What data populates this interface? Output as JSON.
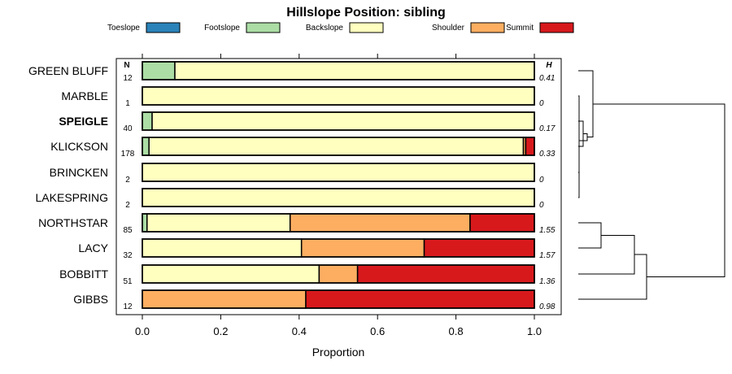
{
  "chart_data": {
    "type": "bar",
    "stacked": true,
    "orientation": "horizontal",
    "title": "Hillslope Position: sibling",
    "xlabel": "Proportion",
    "xlim": [
      0,
      1
    ],
    "xticks": [
      0,
      0.2,
      0.4,
      0.6,
      0.8,
      1
    ],
    "xtick_labels": [
      "0.0",
      "0.2",
      "0.4",
      "0.6",
      "0.8",
      "1.0"
    ],
    "legend_position": "top",
    "n_header": "N",
    "h_header": "H",
    "highlight_category": "SPEIGLE",
    "categories": [
      "GREEN BLUFF",
      "MARBLE",
      "SPEIGLE",
      "KLICKSON",
      "BRINCKEN",
      "LAKESPRING",
      "NORTHSTAR",
      "LACY",
      "BOBBITT",
      "GIBBS"
    ],
    "n": [
      "12",
      "1",
      "40",
      "178",
      "2",
      "2",
      "85",
      "32",
      "51",
      "12"
    ],
    "h": [
      "0.41",
      "0",
      "0.17",
      "0.33",
      "0",
      "0",
      "1.55",
      "1.57",
      "1.36",
      "0.98"
    ],
    "series": [
      {
        "name": "Toeslope",
        "color": "#2b83ba",
        "values": [
          0,
          0,
          0,
          0,
          0,
          0,
          0,
          0,
          0,
          0
        ]
      },
      {
        "name": "Footslope",
        "color": "#abdda4",
        "values": [
          0.083,
          0,
          0.025,
          0.017,
          0,
          0,
          0.012,
          0,
          0,
          0
        ]
      },
      {
        "name": "Backslope",
        "color": "#ffffbf",
        "values": [
          0.917,
          1,
          0.975,
          0.955,
          1,
          1,
          0.365,
          0.406,
          0.451,
          0
        ]
      },
      {
        "name": "Shoulder",
        "color": "#fdae61",
        "values": [
          0,
          0,
          0,
          0.006,
          0,
          0,
          0.459,
          0.313,
          0.098,
          0.417
        ]
      },
      {
        "name": "Summit",
        "color": "#d7191c",
        "values": [
          0,
          0,
          0,
          0.022,
          0,
          0,
          0.164,
          0.281,
          0.451,
          0.583
        ]
      }
    ],
    "dendrogram": {
      "merges": [
        {
          "left": "SPEIGLE",
          "right": "KLICKSON",
          "height": 0.04
        },
        {
          "left": "BRINCKEN",
          "right": "LAKESPRING",
          "height": 0.0
        },
        {
          "left": "MARBLE",
          "right": "BRINCKEN+LAKESPRING",
          "height": 0.0
        },
        {
          "left": "SPEIGLE+KLICKSON",
          "right": "MARBLE+BRINCKEN+LAKESPRING",
          "height": 0.06
        },
        {
          "left": "GREEN BLUFF",
          "right": "SPEIGLE..LAKESPRING",
          "height": 0.12
        },
        {
          "left": "NORTHSTAR",
          "right": "LACY",
          "height": 0.16
        },
        {
          "left": "NORTHSTAR+LACY",
          "right": "BOBBITT",
          "height": 0.31
        },
        {
          "left": "NORTHSTAR+LACY+BOBBITT",
          "right": "GIBBS",
          "height": 0.35
        },
        {
          "left": "GREEN BLUFF..LAKESPRING",
          "right": "NORTHSTAR..GIBBS",
          "height": 1.0
        }
      ]
    }
  }
}
